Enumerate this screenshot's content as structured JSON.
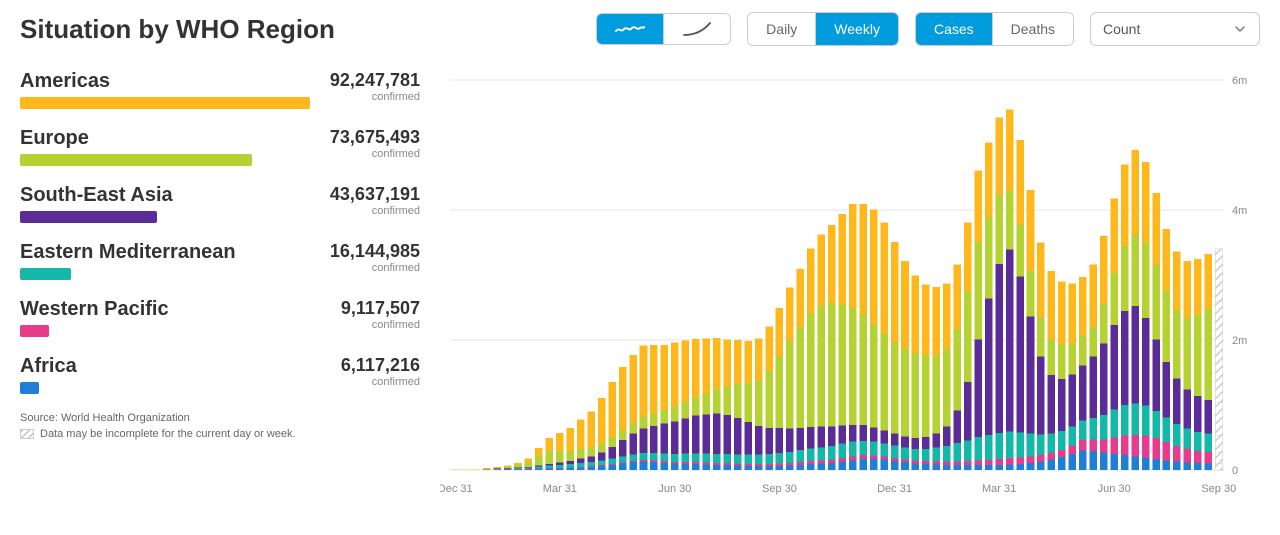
{
  "title": "Situation by WHO Region",
  "controls": {
    "mode_icons": {
      "selected_index": 0
    },
    "granularity": {
      "options": [
        "Daily",
        "Weekly"
      ],
      "selected_index": 1
    },
    "metric": {
      "options": [
        "Cases",
        "Deaths"
      ],
      "selected_index": 0
    },
    "dropdown": {
      "selected": "Count"
    }
  },
  "colors": {
    "active": "#009cde",
    "border": "#cccccc",
    "grid": "#e6e6e6",
    "axis_text": "#888888"
  },
  "regions": [
    {
      "key": "americas",
      "name": "Americas",
      "value": "92,247,781",
      "raw": 92247781,
      "sub": "confirmed",
      "color": "#ffb81c"
    },
    {
      "key": "europe",
      "name": "Europe",
      "value": "73,675,493",
      "raw": 73675493,
      "sub": "confirmed",
      "color": "#b4d232"
    },
    {
      "key": "sea",
      "name": "South-East Asia",
      "value": "43,637,191",
      "raw": 43637191,
      "sub": "confirmed",
      "color": "#5b2c97"
    },
    {
      "key": "emed",
      "name": "Eastern Mediterranean",
      "value": "16,144,985",
      "raw": 16144985,
      "sub": "confirmed",
      "color": "#14b8a6"
    },
    {
      "key": "wpac",
      "name": "Western Pacific",
      "value": "9,117,507",
      "raw": 9117507,
      "sub": "confirmed",
      "color": "#e63c8b"
    },
    {
      "key": "africa",
      "name": "Africa",
      "value": "6,117,216",
      "raw": 6117216,
      "sub": "confirmed",
      "color": "#1f7fd6"
    }
  ],
  "footnotes": {
    "source": "Source: World Health Organization",
    "incomplete": "Data may be incomplete for the current day or week."
  },
  "chart": {
    "type": "stacked-bar",
    "ylim": [
      0,
      6000000
    ],
    "yticks": [
      {
        "v": 0,
        "label": "0"
      },
      {
        "v": 2000000,
        "label": "2m"
      },
      {
        "v": 4000000,
        "label": "4m"
      },
      {
        "v": 6000000,
        "label": "6m"
      }
    ],
    "x_labels": [
      "Dec 31",
      "Mar 31",
      "Jun 30",
      "Sep 30",
      "Dec 31",
      "Mar 31",
      "Jun 30",
      "Sep 30"
    ],
    "series_order": [
      "africa",
      "wpac",
      "emed",
      "sea",
      "europe",
      "americas"
    ],
    "series_colors": {
      "africa": "#1f7fd6",
      "wpac": "#e63c8b",
      "emed": "#14b8a6",
      "sea": "#5b2c97",
      "europe": "#b4d232",
      "americas": "#ffb81c"
    },
    "incomplete_last": true,
    "bars": [
      {
        "africa": 0,
        "wpac": 0,
        "emed": 0,
        "sea": 0,
        "europe": 0,
        "americas": 5
      },
      {
        "africa": 0,
        "wpac": 0,
        "emed": 0,
        "sea": 0,
        "europe": 0,
        "americas": 8
      },
      {
        "africa": 0,
        "wpac": 0,
        "emed": 0,
        "sea": 0,
        "europe": 0,
        "americas": 10
      },
      {
        "africa": 0,
        "wpac": 5,
        "emed": 5,
        "sea": 0,
        "europe": 10,
        "americas": 10
      },
      {
        "africa": 2,
        "wpac": 8,
        "emed": 8,
        "sea": 2,
        "europe": 15,
        "americas": 15
      },
      {
        "africa": 5,
        "wpac": 10,
        "emed": 10,
        "sea": 5,
        "europe": 20,
        "americas": 20
      },
      {
        "africa": 8,
        "wpac": 10,
        "emed": 15,
        "sea": 8,
        "europe": 40,
        "americas": 30
      },
      {
        "africa": 10,
        "wpac": 10,
        "emed": 20,
        "sea": 10,
        "europe": 80,
        "americas": 50
      },
      {
        "africa": 15,
        "wpac": 8,
        "emed": 30,
        "sea": 15,
        "europe": 150,
        "americas": 120
      },
      {
        "africa": 20,
        "wpac": 8,
        "emed": 40,
        "sea": 25,
        "europe": 200,
        "americas": 200
      },
      {
        "africa": 25,
        "wpac": 8,
        "emed": 45,
        "sea": 35,
        "europe": 180,
        "americas": 280
      },
      {
        "africa": 30,
        "wpac": 10,
        "emed": 50,
        "sea": 50,
        "europe": 160,
        "americas": 350
      },
      {
        "africa": 40,
        "wpac": 10,
        "emed": 55,
        "sea": 70,
        "europe": 150,
        "americas": 450
      },
      {
        "africa": 50,
        "wpac": 10,
        "emed": 60,
        "sea": 90,
        "europe": 140,
        "americas": 550
      },
      {
        "africa": 65,
        "wpac": 12,
        "emed": 70,
        "sea": 120,
        "europe": 140,
        "americas": 700
      },
      {
        "africa": 80,
        "wpac": 15,
        "emed": 80,
        "sea": 180,
        "europe": 150,
        "americas": 850
      },
      {
        "africa": 100,
        "wpac": 18,
        "emed": 90,
        "sea": 250,
        "europe": 150,
        "americas": 980
      },
      {
        "africa": 120,
        "wpac": 20,
        "emed": 100,
        "sea": 320,
        "europe": 160,
        "americas": 1050
      },
      {
        "africa": 130,
        "wpac": 22,
        "emed": 110,
        "sea": 380,
        "europe": 170,
        "americas": 1100
      },
      {
        "africa": 120,
        "wpac": 25,
        "emed": 115,
        "sea": 420,
        "europe": 190,
        "americas": 1050
      },
      {
        "africa": 110,
        "wpac": 25,
        "emed": 120,
        "sea": 460,
        "europe": 210,
        "americas": 1000
      },
      {
        "africa": 100,
        "wpac": 25,
        "emed": 125,
        "sea": 500,
        "europe": 230,
        "americas": 980
      },
      {
        "africa": 95,
        "wpac": 28,
        "emed": 130,
        "sea": 540,
        "europe": 250,
        "americas": 950
      },
      {
        "africa": 90,
        "wpac": 30,
        "emed": 135,
        "sea": 580,
        "europe": 280,
        "americas": 900
      },
      {
        "africa": 85,
        "wpac": 30,
        "emed": 140,
        "sea": 600,
        "europe": 320,
        "americas": 850
      },
      {
        "africa": 80,
        "wpac": 30,
        "emed": 140,
        "sea": 620,
        "europe": 380,
        "americas": 780
      },
      {
        "africa": 75,
        "wpac": 30,
        "emed": 140,
        "sea": 600,
        "europe": 440,
        "americas": 720
      },
      {
        "africa": 70,
        "wpac": 30,
        "emed": 140,
        "sea": 560,
        "europe": 520,
        "americas": 680
      },
      {
        "africa": 65,
        "wpac": 30,
        "emed": 140,
        "sea": 500,
        "europe": 600,
        "americas": 650
      },
      {
        "africa": 60,
        "wpac": 32,
        "emed": 145,
        "sea": 440,
        "europe": 700,
        "americas": 650
      },
      {
        "africa": 60,
        "wpac": 35,
        "emed": 150,
        "sea": 400,
        "europe": 880,
        "americas": 680
      },
      {
        "africa": 65,
        "wpac": 38,
        "emed": 160,
        "sea": 380,
        "europe": 1100,
        "americas": 750
      },
      {
        "africa": 70,
        "wpac": 40,
        "emed": 170,
        "sea": 360,
        "europe": 1350,
        "americas": 820
      },
      {
        "africa": 80,
        "wpac": 45,
        "emed": 180,
        "sea": 340,
        "europe": 1550,
        "americas": 900
      },
      {
        "africa": 90,
        "wpac": 48,
        "emed": 190,
        "sea": 330,
        "europe": 1750,
        "americas": 1000
      },
      {
        "africa": 100,
        "wpac": 50,
        "emed": 200,
        "sea": 320,
        "europe": 1850,
        "americas": 1100
      },
      {
        "africa": 110,
        "wpac": 50,
        "emed": 210,
        "sea": 300,
        "europe": 1900,
        "americas": 1200
      },
      {
        "africa": 130,
        "wpac": 55,
        "emed": 220,
        "sea": 280,
        "europe": 1850,
        "americas": 1400
      },
      {
        "africa": 150,
        "wpac": 60,
        "emed": 225,
        "sea": 260,
        "europe": 1800,
        "americas": 1600
      },
      {
        "africa": 170,
        "wpac": 60,
        "emed": 220,
        "sea": 240,
        "europe": 1700,
        "americas": 1700
      },
      {
        "africa": 170,
        "wpac": 55,
        "emed": 210,
        "sea": 220,
        "europe": 1600,
        "americas": 1750
      },
      {
        "africa": 160,
        "wpac": 50,
        "emed": 200,
        "sea": 200,
        "europe": 1500,
        "americas": 1700
      },
      {
        "africa": 140,
        "wpac": 48,
        "emed": 190,
        "sea": 180,
        "europe": 1400,
        "americas": 1550
      },
      {
        "africa": 120,
        "wpac": 45,
        "emed": 180,
        "sea": 170,
        "europe": 1350,
        "americas": 1350
      },
      {
        "africa": 100,
        "wpac": 45,
        "emed": 180,
        "sea": 170,
        "europe": 1300,
        "americas": 1200
      },
      {
        "africa": 90,
        "wpac": 45,
        "emed": 190,
        "sea": 180,
        "europe": 1250,
        "americas": 1100
      },
      {
        "africa": 85,
        "wpac": 48,
        "emed": 210,
        "sea": 220,
        "europe": 1200,
        "americas": 1050
      },
      {
        "africa": 80,
        "wpac": 50,
        "emed": 240,
        "sea": 300,
        "europe": 1200,
        "americas": 1000
      },
      {
        "africa": 78,
        "wpac": 55,
        "emed": 280,
        "sea": 500,
        "europe": 1250,
        "americas": 1000
      },
      {
        "africa": 76,
        "wpac": 60,
        "emed": 320,
        "sea": 900,
        "europe": 1400,
        "americas": 1050
      },
      {
        "africa": 75,
        "wpac": 70,
        "emed": 360,
        "sea": 1500,
        "europe": 1500,
        "americas": 1100
      },
      {
        "africa": 75,
        "wpac": 80,
        "emed": 380,
        "sea": 2100,
        "europe": 1250,
        "americas": 1150
      },
      {
        "africa": 80,
        "wpac": 90,
        "emed": 400,
        "sea": 2600,
        "europe": 1050,
        "americas": 1200
      },
      {
        "africa": 85,
        "wpac": 100,
        "emed": 410,
        "sea": 2800,
        "europe": 900,
        "americas": 1250
      },
      {
        "africa": 95,
        "wpac": 100,
        "emed": 380,
        "sea": 2400,
        "europe": 800,
        "americas": 1300
      },
      {
        "africa": 110,
        "wpac": 100,
        "emed": 350,
        "sea": 1800,
        "europe": 700,
        "americas": 1250
      },
      {
        "africa": 130,
        "wpac": 100,
        "emed": 320,
        "sea": 1200,
        "europe": 600,
        "americas": 1150
      },
      {
        "africa": 160,
        "wpac": 100,
        "emed": 300,
        "sea": 900,
        "europe": 550,
        "americas": 1050
      },
      {
        "africa": 200,
        "wpac": 110,
        "emed": 290,
        "sea": 800,
        "europe": 520,
        "americas": 980
      },
      {
        "africa": 250,
        "wpac": 130,
        "emed": 290,
        "sea": 800,
        "europe": 480,
        "americas": 920
      },
      {
        "africa": 300,
        "wpac": 160,
        "emed": 300,
        "sea": 850,
        "europe": 460,
        "americas": 900
      },
      {
        "africa": 290,
        "wpac": 180,
        "emed": 330,
        "sea": 950,
        "europe": 460,
        "americas": 950
      },
      {
        "africa": 270,
        "wpac": 200,
        "emed": 380,
        "sea": 1100,
        "europe": 600,
        "americas": 1050
      },
      {
        "africa": 250,
        "wpac": 250,
        "emed": 430,
        "sea": 1300,
        "europe": 800,
        "americas": 1150
      },
      {
        "africa": 230,
        "wpac": 300,
        "emed": 470,
        "sea": 1450,
        "europe": 1000,
        "americas": 1250
      },
      {
        "africa": 210,
        "wpac": 330,
        "emed": 480,
        "sea": 1500,
        "europe": 1100,
        "americas": 1300
      },
      {
        "africa": 190,
        "wpac": 340,
        "emed": 460,
        "sea": 1350,
        "europe": 1150,
        "americas": 1250
      },
      {
        "africa": 170,
        "wpac": 320,
        "emed": 420,
        "sea": 1100,
        "europe": 1150,
        "americas": 1100
      },
      {
        "africa": 150,
        "wpac": 280,
        "emed": 380,
        "sea": 850,
        "europe": 1100,
        "americas": 950
      },
      {
        "africa": 130,
        "wpac": 240,
        "emed": 340,
        "sea": 700,
        "europe": 1050,
        "americas": 900
      },
      {
        "africa": 115,
        "wpac": 210,
        "emed": 310,
        "sea": 600,
        "europe": 1100,
        "americas": 880
      },
      {
        "africa": 105,
        "wpac": 190,
        "emed": 290,
        "sea": 550,
        "europe": 1250,
        "americas": 860
      },
      {
        "africa": 100,
        "wpac": 180,
        "emed": 280,
        "sea": 520,
        "europe": 1400,
        "americas": 840
      },
      {
        "africa": 95,
        "wpac": 170,
        "emed": 270,
        "sea": 500,
        "europe": 1550,
        "americas": 820
      }
    ]
  }
}
